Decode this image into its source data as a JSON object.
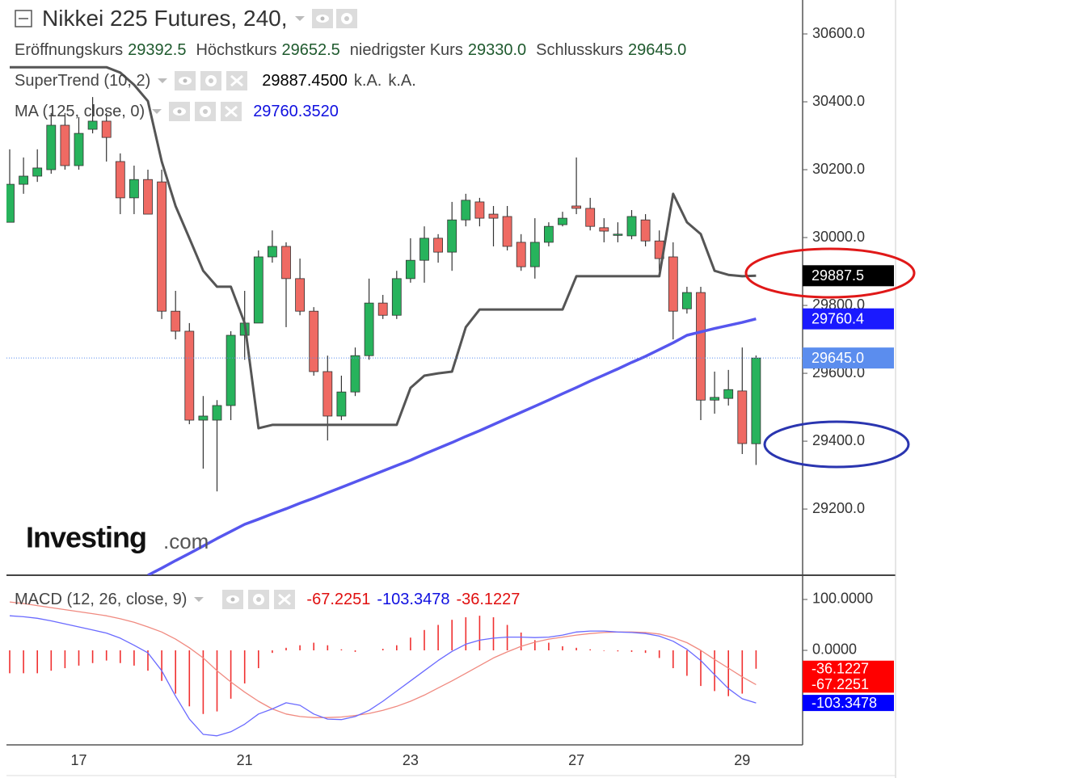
{
  "header": {
    "title": "Nikkei 225 Futures, 240,",
    "ohlc": [
      {
        "label": "Eröffnungskurs",
        "value": "29392.5"
      },
      {
        "label": "Höchstkurs",
        "value": "29652.5"
      },
      {
        "label": "niedrigster Kurs",
        "value": "29330.0"
      },
      {
        "label": "Schlusskurs",
        "value": "29645.0"
      }
    ]
  },
  "watermark": {
    "brand": "Investing",
    "suffix": ".com"
  },
  "chart_data": [
    {
      "type": "candlestick",
      "categories": [
        null,
        null,
        null,
        null,
        null,
        "17",
        null,
        null,
        null,
        null,
        null,
        null,
        null,
        null,
        null,
        null,
        null,
        "21",
        null,
        null,
        null,
        null,
        null,
        null,
        null,
        null,
        null,
        null,
        null,
        "23",
        null,
        null,
        null,
        null,
        null,
        null,
        null,
        null,
        null,
        null,
        null,
        "27",
        null,
        null,
        null,
        null,
        null,
        null,
        null,
        null,
        null,
        null,
        null,
        "29",
        null
      ],
      "open": [
        30045,
        30157,
        30181,
        30200,
        30331,
        30212,
        30319,
        30343,
        30224,
        30117,
        30171,
        30164,
        29783,
        29724,
        29462,
        29462,
        29505,
        29712,
        29748,
        29943,
        29974,
        29879,
        29783,
        29605,
        29474,
        29545,
        29652,
        29807,
        29771,
        29879,
        29933,
        29998,
        29957,
        30052,
        30105,
        30069,
        30062,
        29986,
        29914,
        29986,
        30038,
        30093,
        30086,
        30029,
        30010,
        30005,
        30052,
        29990,
        29943,
        29790,
        29838,
        29521,
        29526,
        29548,
        29392.5
      ],
      "high": [
        30260,
        30236,
        30260,
        30367,
        30367,
        30355,
        30414,
        30367,
        30248,
        30212,
        30200,
        30200,
        29843,
        29748,
        29533,
        29521,
        29724,
        29843,
        29962,
        30021,
        29986,
        29938,
        29795,
        29652,
        29593,
        29676,
        29879,
        29831,
        29902,
        29998,
        30033,
        30010,
        30105,
        30129,
        30117,
        30093,
        30093,
        30010,
        30057,
        30045,
        30076,
        30236,
        30117,
        30057,
        30045,
        30081,
        30069,
        30021,
        29986,
        29855,
        29855,
        29605,
        29610,
        29676,
        29652.5
      ],
      "low": [
        30045,
        30129,
        30164,
        30188,
        30200,
        30200,
        30307,
        30224,
        30069,
        30069,
        30069,
        29760,
        29700,
        29450,
        29319,
        29252,
        29462,
        29640,
        29748,
        29926,
        29736,
        29771,
        29593,
        29402,
        29462,
        29533,
        29640,
        29760,
        29760,
        29867,
        29867,
        29926,
        29902,
        30033,
        30033,
        29974,
        29962,
        29902,
        29879,
        29974,
        30033,
        30069,
        30021,
        29986,
        29986,
        29995,
        29974,
        29902,
        29700,
        29776,
        29462,
        29481,
        29505,
        29362,
        29330
      ],
      "close": [
        30157,
        30181,
        30205,
        30331,
        30212,
        30307,
        30343,
        30295,
        30117,
        30171,
        30069,
        29783,
        29724,
        29462,
        29474,
        29505,
        29712,
        29748,
        29943,
        29974,
        29879,
        29783,
        29605,
        29474,
        29545,
        29652,
        29807,
        29771,
        29879,
        29933,
        29998,
        29957,
        30052,
        30110,
        30057,
        30057,
        29974,
        29914,
        29986,
        30033,
        30057,
        30086,
        30033,
        30019,
        30010,
        30062,
        29990,
        29938,
        29783,
        29838,
        29521,
        29529,
        29552,
        29393,
        29645
      ],
      "up_color": "#27b35c",
      "down_color": "#ef6a63",
      "ylim": [
        29005,
        30700
      ],
      "yticks": [
        {
          "value": 29200,
          "label": "29200.0"
        },
        {
          "value": 29400,
          "label": "29400.0"
        },
        {
          "value": 29600,
          "label": "29600.0"
        },
        {
          "value": 29800,
          "label": "29800.0"
        },
        {
          "value": 30000,
          "label": "30000.0"
        },
        {
          "value": 30200,
          "label": "30200.0"
        },
        {
          "value": 30400,
          "label": "30400.0"
        },
        {
          "value": 30600,
          "label": "30600.0"
        }
      ],
      "series": [
        {
          "name": "SuperTrend (10, 2)",
          "color": "#555555",
          "values": [
            30502,
            30502,
            30502,
            30502,
            30502,
            30502,
            30502,
            30502,
            30486,
            30450,
            30402,
            30224,
            30093,
            29998,
            29902,
            29855,
            29855,
            29748,
            29438,
            29448,
            29448,
            29448,
            29448,
            29448,
            29448,
            29448,
            29448,
            29448,
            29448,
            29557,
            29593,
            29600,
            29605,
            29736,
            29788,
            29788,
            29788,
            29788,
            29788,
            29788,
            29788,
            29886,
            29886,
            29886,
            29886,
            29886,
            29886,
            29886,
            30129,
            30045,
            30010,
            29902,
            29890,
            29886,
            29887.45
          ],
          "legend_values": [
            "29887.4500",
            "k.A.",
            "k.A."
          ]
        },
        {
          "name": "MA (125, close, 0)",
          "color": "#5656ee",
          "values": [
            null,
            null,
            null,
            null,
            null,
            null,
            null,
            null,
            null,
            null,
            29005,
            29026,
            29048,
            29069,
            29091,
            29113,
            29134,
            29155,
            29170,
            29186,
            29201,
            29217,
            29232,
            29248,
            29264,
            29280,
            29296,
            29312,
            29328,
            29344,
            29362,
            29379,
            29396,
            29414,
            29431,
            29449,
            29467,
            29485,
            29503,
            29521,
            29540,
            29558,
            29577,
            29595,
            29613,
            29632,
            29650,
            29670,
            29690,
            29712,
            29722,
            29732,
            29741,
            29750,
            29760.352
          ],
          "legend_values": [
            "29760.3520"
          ]
        }
      ],
      "price_tags": [
        {
          "value": 29887.5,
          "label": "29887.5",
          "color": "#000000"
        },
        {
          "value": 29760.4,
          "label": "29760.4",
          "color": "#1a1aff"
        },
        {
          "value": 29645,
          "label": "29645.0",
          "color": "#5b8dee",
          "price_line": true
        }
      ]
    },
    {
      "type": "macd",
      "title": "MACD (12, 26, close, 9)",
      "ylim": [
        -185.7,
        147.6
      ],
      "yticks": [
        {
          "value": 100,
          "label": "100.0000"
        },
        {
          "value": 0,
          "label": "0.0000"
        }
      ],
      "series": [
        {
          "type": "line",
          "color": "#f08a80",
          "values": [
            95,
            92,
            88,
            84,
            80,
            76,
            72,
            68,
            62,
            55,
            46,
            36,
            22,
            5,
            -15,
            -40,
            -62,
            -82,
            -100,
            -115,
            -125,
            -130,
            -132,
            -132,
            -131,
            -128,
            -124,
            -118,
            -110,
            -100,
            -88,
            -74,
            -60,
            -45,
            -30,
            -15,
            -3,
            8,
            16,
            22,
            26,
            30,
            33,
            35,
            36,
            36,
            35,
            32,
            25,
            15,
            0,
            -18,
            -35,
            -52,
            -67.2251
          ],
          "legend_value": "-67.2251"
        },
        {
          "type": "line",
          "color": "#6a6aff",
          "values": [
            68,
            66,
            63,
            58,
            52,
            46,
            40,
            34,
            24,
            10,
            -5,
            -40,
            -90,
            -135,
            -165,
            -168,
            -160,
            -145,
            -125,
            -115,
            -103,
            -108,
            -125,
            -135,
            -136,
            -130,
            -118,
            -100,
            -80,
            -60,
            -40,
            -20,
            -2,
            12,
            20,
            24,
            26,
            26,
            25,
            26,
            30,
            36,
            38,
            38,
            36,
            35,
            33,
            28,
            18,
            2,
            -20,
            -48,
            -75,
            -95,
            -103.3478
          ],
          "legend_value": "-103.3478"
        },
        {
          "type": "bar",
          "color": "#f03030",
          "values": [
            -45,
            -45,
            -45,
            -40,
            -35,
            -30,
            -25,
            -20,
            -25,
            -30,
            -40,
            -60,
            -85,
            -110,
            -125,
            -120,
            -95,
            -65,
            -35,
            -5,
            5,
            10,
            15,
            10,
            2,
            -3,
            0,
            3,
            10,
            25,
            40,
            50,
            60,
            65,
            68,
            65,
            50,
            35,
            20,
            15,
            8,
            5,
            2,
            -1,
            -2,
            -3,
            -5,
            -15,
            -35,
            -50,
            -70,
            -80,
            -90,
            -85,
            -36.1227
          ],
          "legend_value": "-36.1227"
        }
      ],
      "price_tags": [
        {
          "value": -36.1227,
          "label": "-36.1227",
          "color": "#ff0000"
        },
        {
          "value": -67.2251,
          "label": "-67.2251",
          "color": "#ff0000"
        },
        {
          "value": -103.3478,
          "label": "-103.3478",
          "color": "#0000ff"
        }
      ]
    }
  ]
}
